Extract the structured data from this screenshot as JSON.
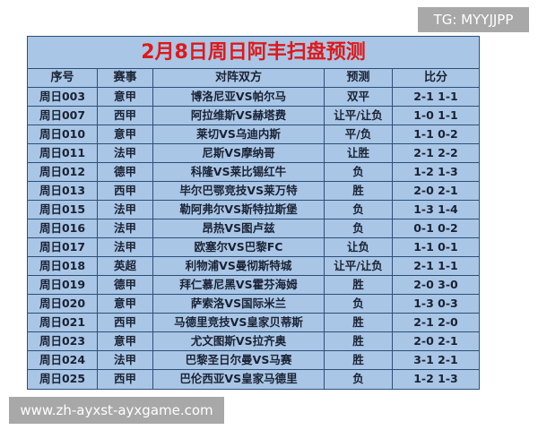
{
  "watermark_top": "TG: MYYJJPP",
  "watermark_bottom": "www.zh-ayxst-ayxgame.com",
  "title": "2月8日周日阿丰扫盘预测",
  "headers": [
    "序号",
    "赛事",
    "对阵双方",
    "预测",
    "比分"
  ],
  "rows": [
    [
      "周日003",
      "意甲",
      "博洛尼亚VS帕尔马",
      "双平",
      "2-1 1-1"
    ],
    [
      "周日007",
      "西甲",
      "阿拉维斯VS赫塔费",
      "让平/让负",
      "1-0 1-1"
    ],
    [
      "周日010",
      "意甲",
      "莱切VS乌迪内斯",
      "平/负",
      "1-1 0-2"
    ],
    [
      "周日011",
      "法甲",
      "尼斯VS摩纳哥",
      "让胜",
      "2-1 2-2"
    ],
    [
      "周日012",
      "德甲",
      "科隆VS莱比锡红牛",
      "负",
      "1-2 1-3"
    ],
    [
      "周日013",
      "西甲",
      "毕尔巴鄂竞技VS莱万特",
      "胜",
      "2-0 2-1"
    ],
    [
      "周日015",
      "法甲",
      "勒阿弗尔VS斯特拉斯堡",
      "负",
      "1-3 1-4"
    ],
    [
      "周日016",
      "法甲",
      "昂热VS图卢兹",
      "负",
      "0-1 0-2"
    ],
    [
      "周日017",
      "法甲",
      "欧塞尔VS巴黎FC",
      "让负",
      "1-1 0-1"
    ],
    [
      "周日018",
      "英超",
      "利物浦VS曼彻斯特城",
      "让平/让负",
      "2-1 1-1"
    ],
    [
      "周日019",
      "德甲",
      "拜仁慕尼黑VS霍芬海姆",
      "胜",
      "2-0 3-0"
    ],
    [
      "周日020",
      "意甲",
      "萨索洛VS国际米兰",
      "负",
      "1-3 0-3"
    ],
    [
      "周日021",
      "西甲",
      "马德里竞技VS皇家贝蒂斯",
      "胜",
      "2-1 2-0"
    ],
    [
      "周日023",
      "意甲",
      "尤文图斯VS拉齐奥",
      "胜",
      "2-0 2-1"
    ],
    [
      "周日024",
      "法甲",
      "巴黎圣日尔曼VS马赛",
      "胜",
      "3-1 2-1"
    ],
    [
      "周日025",
      "西甲",
      "巴伦西亚VS皇家马德里",
      "负",
      "1-2 1-3"
    ]
  ],
  "colors": {
    "title": "#e01818",
    "table_bg": "#a9c6e6",
    "border": "#2c4f78"
  }
}
